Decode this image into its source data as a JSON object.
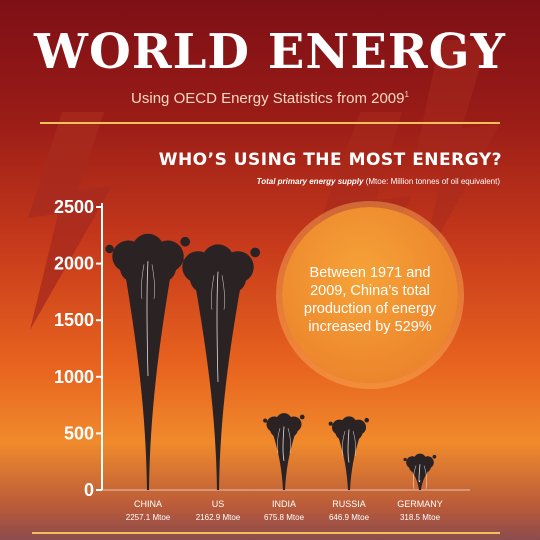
{
  "header": {
    "title": "WORLD ENERGY",
    "subtitle": "Using OECD Energy Statistics from 2009",
    "subtitle_note": "1"
  },
  "question": "WHO’S USING THE MOST ENERGY?",
  "supply_note": {
    "bold": "Total primary energy supply",
    "normal": "(Mtoe: Million tonnes of oil equivalent)"
  },
  "callout": "Between 1971 and 2009, China’s total production of energy increased by 529%",
  "colors": {
    "mushroom": "#2b2224",
    "accent_line": "#f2c05a",
    "bolt": "#a82a1e"
  },
  "chart_data": {
    "type": "bar",
    "categories": [
      "CHINA",
      "US",
      "INDIA",
      "RUSSIA",
      "GERMANY"
    ],
    "values": [
      2257.1,
      2162.9,
      675.8,
      646.9,
      318.5
    ],
    "value_labels": [
      "2257.1 Mtoe",
      "2162.9 Mtoe",
      "675.8 Mtoe",
      "646.9 Mtoe",
      "318.5 Mtoe"
    ],
    "ylim": [
      0,
      2500
    ],
    "yticks": [
      0,
      500,
      1000,
      1500,
      2000,
      2500
    ],
    "xlabel": "",
    "ylabel": "",
    "grid": false,
    "legend": "none"
  }
}
